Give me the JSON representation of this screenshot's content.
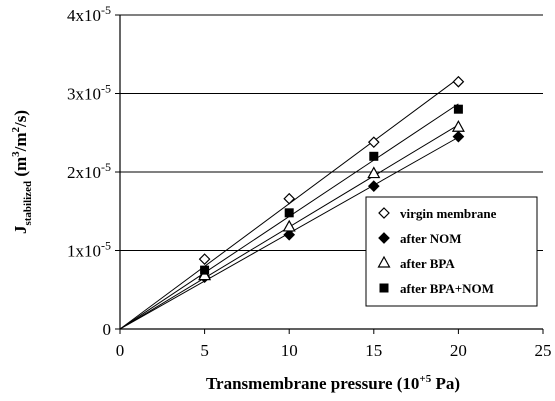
{
  "chart_data": {
    "type": "scatter",
    "xlabel": {
      "main": "Transmembrane pressure (10",
      "sup": "+5",
      "tail": " Pa)"
    },
    "ylabel": {
      "main": "J",
      "sub": "stabilized",
      "mid": " (m",
      "sup1": "3",
      "mid2": "/m",
      "sup2": "2",
      "tail": "/s)"
    },
    "xlim": [
      0,
      25
    ],
    "ylim": [
      0,
      4e-05
    ],
    "xticks": [
      0,
      5,
      10,
      15,
      20,
      25
    ],
    "xtick_labels": [
      "0",
      "5",
      "10",
      "15",
      "20",
      "25"
    ],
    "yticks": [
      0,
      1e-05,
      2e-05,
      3e-05,
      4e-05
    ],
    "ytick_labels": [
      {
        "base": "0",
        "exp": ""
      },
      {
        "base": "1x10",
        "exp": "-5"
      },
      {
        "base": "2x10",
        "exp": "-5"
      },
      {
        "base": "3x10",
        "exp": "-5"
      },
      {
        "base": "4x10",
        "exp": "-5"
      }
    ],
    "grid": "horizontal",
    "legend_position": "bottom-right",
    "trendlines": "linear through origin",
    "series": [
      {
        "name": "virgin membrane",
        "marker": "diamond-open",
        "x": [
          0,
          5,
          10,
          15,
          20
        ],
        "y": [
          0,
          8.9e-06,
          1.66e-05,
          2.38e-05,
          3.15e-05
        ]
      },
      {
        "name": "after NOM",
        "marker": "diamond-filled",
        "x": [
          0,
          5,
          10,
          15,
          20
        ],
        "y": [
          0,
          6.6e-06,
          1.2e-05,
          1.82e-05,
          2.45e-05
        ]
      },
      {
        "name": "after BPA",
        "marker": "triangle-open",
        "x": [
          0,
          5,
          10,
          15,
          20
        ],
        "y": [
          0,
          6.8e-06,
          1.3e-05,
          1.98e-05,
          2.57e-05
        ]
      },
      {
        "name": "after BPA+NOM",
        "marker": "square-filled",
        "x": [
          0,
          5,
          10,
          15,
          20
        ],
        "y": [
          0,
          7.5e-06,
          1.48e-05,
          2.2e-05,
          2.8e-05
        ]
      }
    ]
  }
}
